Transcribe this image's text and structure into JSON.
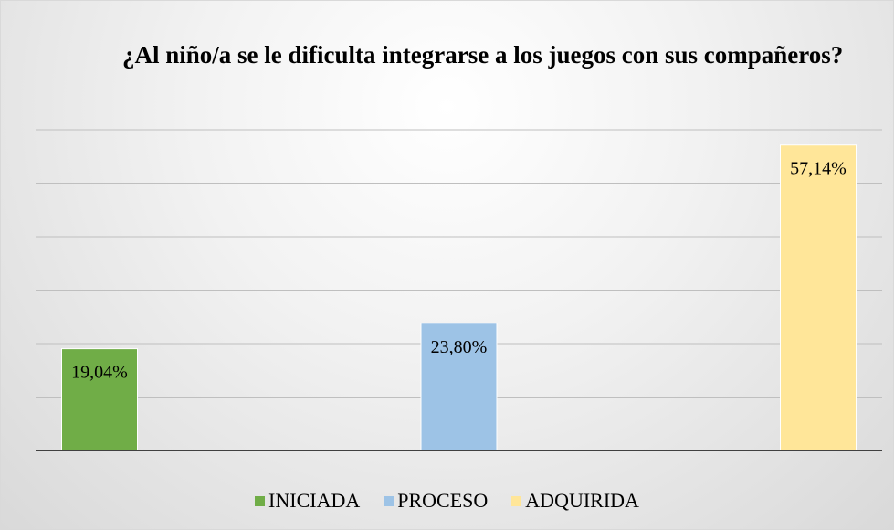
{
  "chart_data": {
    "type": "bar",
    "title": "¿Al niño/a se le dificulta integrarse a los juegos con sus compañeros?",
    "categories": [
      null
    ],
    "series": [
      {
        "name": "INICIADA",
        "color": "#70ad47",
        "values": [
          19.04
        ],
        "value_labels": [
          "19,04%"
        ]
      },
      {
        "name": "PROCESO",
        "color": "#9dc3e6",
        "values": [
          23.8
        ],
        "value_labels": [
          "23,80%"
        ]
      },
      {
        "name": "ADQUIRIDA",
        "color": "#ffe699",
        "values": [
          57.14
        ],
        "value_labels": [
          "57,14%"
        ]
      }
    ],
    "ylim": [
      0,
      60
    ],
    "yticks": [
      0,
      10,
      20,
      30,
      40,
      50,
      60
    ],
    "grid": true,
    "legend": "bottom"
  }
}
